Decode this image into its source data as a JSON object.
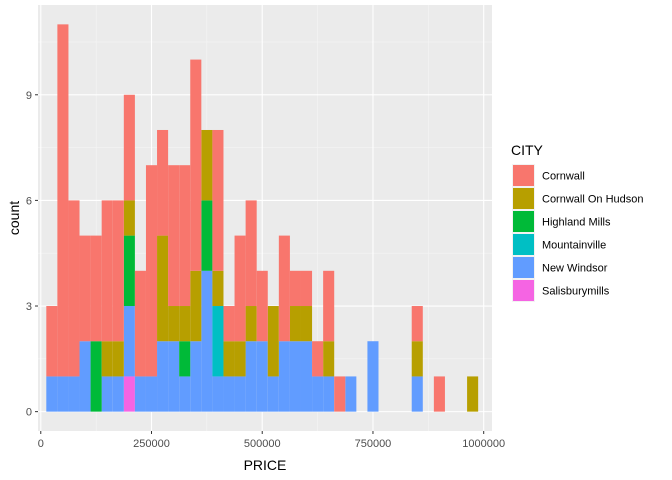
{
  "chart_data": {
    "type": "bar",
    "subtype": "stacked-histogram",
    "xlabel": "PRICE",
    "ylabel": "count",
    "xlim": [
      0,
      1012500
    ],
    "ylim": [
      0,
      11
    ],
    "x_ticks": [
      0,
      250000,
      500000,
      750000,
      1000000
    ],
    "x_tick_labels": [
      "0",
      "250000",
      "500000",
      "750000",
      "1000000"
    ],
    "y_ticks": [
      0,
      3,
      6,
      9
    ],
    "y_tick_labels": [
      "0",
      "3",
      "6",
      "9"
    ],
    "grid": true,
    "legend": {
      "title": "CITY",
      "position": "right"
    },
    "bin_width": 25000,
    "bin_centers": [
      25000,
      50000,
      75000,
      100000,
      125000,
      150000,
      175000,
      200000,
      225000,
      250000,
      275000,
      300000,
      325000,
      350000,
      375000,
      400000,
      425000,
      450000,
      475000,
      500000,
      525000,
      550000,
      575000,
      600000,
      625000,
      650000,
      675000,
      700000,
      725000,
      750000,
      775000,
      800000,
      825000,
      850000,
      875000,
      900000,
      925000,
      950000,
      975000,
      1000000
    ],
    "series": [
      {
        "name": "Salisburymills",
        "color": "#F564E3",
        "values": [
          0,
          0,
          0,
          0,
          0,
          0,
          0,
          1,
          0,
          0,
          0,
          0,
          0,
          0,
          0,
          0,
          0,
          0,
          0,
          0,
          0,
          0,
          0,
          0,
          0,
          0,
          0,
          0,
          0,
          0,
          0,
          0,
          0,
          0,
          0,
          0,
          0,
          0,
          0,
          0
        ]
      },
      {
        "name": "New Windsor",
        "color": "#619CFF",
        "values": [
          1,
          1,
          1,
          2,
          0,
          1,
          1,
          2,
          1,
          1,
          2,
          2,
          1,
          2,
          4,
          1,
          1,
          1,
          2,
          2,
          1,
          2,
          2,
          2,
          1,
          1,
          0,
          1,
          0,
          2,
          0,
          0,
          0,
          1,
          0,
          0,
          0,
          0,
          0,
          0
        ]
      },
      {
        "name": "Mountainville",
        "color": "#00BFC4",
        "values": [
          0,
          0,
          0,
          0,
          0,
          0,
          0,
          0,
          0,
          0,
          0,
          0,
          0,
          0,
          0,
          2,
          0,
          0,
          0,
          0,
          0,
          0,
          0,
          0,
          0,
          0,
          0,
          0,
          0,
          0,
          0,
          0,
          0,
          0,
          0,
          0,
          0,
          0,
          0,
          0
        ]
      },
      {
        "name": "Highland Mills",
        "color": "#00BA38",
        "values": [
          0,
          0,
          0,
          0,
          2,
          0,
          0,
          2,
          0,
          0,
          0,
          0,
          1,
          0,
          2,
          0,
          0,
          0,
          0,
          0,
          0,
          0,
          0,
          0,
          0,
          0,
          0,
          0,
          0,
          0,
          0,
          0,
          0,
          0,
          0,
          0,
          0,
          0,
          0,
          0
        ]
      },
      {
        "name": "Cornwall On Hudson",
        "color": "#B79F00",
        "values": [
          0,
          0,
          0,
          0,
          0,
          1,
          1,
          1,
          0,
          0,
          3,
          1,
          1,
          2,
          2,
          1,
          1,
          1,
          1,
          0,
          2,
          0,
          1,
          1,
          0,
          1,
          0,
          0,
          0,
          0,
          0,
          0,
          0,
          1,
          0,
          0,
          0,
          0,
          1,
          0
        ]
      },
      {
        "name": "Cornwall",
        "color": "#F8766D",
        "values": [
          2,
          10,
          5,
          3,
          3,
          4,
          4,
          3,
          3,
          6,
          3,
          4,
          4,
          6,
          0,
          4,
          1,
          3,
          3,
          2,
          0,
          3,
          1,
          1,
          1,
          2,
          1,
          0,
          0,
          0,
          0,
          0,
          0,
          1,
          0,
          1,
          0,
          0,
          0,
          0
        ]
      }
    ],
    "legend_order": [
      "Cornwall",
      "Cornwall On Hudson",
      "Highland Mills",
      "Mountainville",
      "New Windsor",
      "Salisburymills"
    ]
  }
}
